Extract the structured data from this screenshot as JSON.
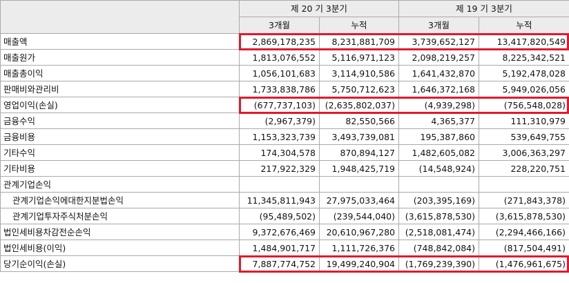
{
  "header": {
    "period1": "제 20 기 3분기",
    "period2": "제 19 기 3분기",
    "sub": [
      "3개월",
      "누적",
      "3개월",
      "누적"
    ]
  },
  "rows": [
    {
      "label": "매출액",
      "values": [
        "2,869,178,235",
        "8,231,881,709",
        "3,739,652,127",
        "13,417,820,549"
      ],
      "highlight": true
    },
    {
      "label": "매출원가",
      "values": [
        "1,813,076,552",
        "5,116,971,123",
        "2,098,219,257",
        "8,225,342,521"
      ]
    },
    {
      "label": "매출총이익",
      "values": [
        "1,056,101,683",
        "3,114,910,586",
        "1,641,432,870",
        "5,192,478,028"
      ]
    },
    {
      "label": "판매비와관리비",
      "values": [
        "1,733,838,786",
        "5,750,712,623",
        "1,646,372,168",
        "5,949,026,056"
      ]
    },
    {
      "label": "영업이익(손실)",
      "values": [
        "(677,737,103)",
        "(2,635,802,037)",
        "(4,939,298)",
        "(756,548,028)"
      ],
      "highlight": true
    },
    {
      "label": "금융수익",
      "values": [
        "(2,967,379)",
        "82,550,566",
        "4,365,377",
        "111,310,979"
      ]
    },
    {
      "label": "금융비용",
      "values": [
        "1,153,323,739",
        "3,493,739,081",
        "195,387,860",
        "539,649,755"
      ]
    },
    {
      "label": "기타수익",
      "values": [
        "174,304,578",
        "870,894,127",
        "1,482,605,082",
        "3,006,363,297"
      ]
    },
    {
      "label": "기타비용",
      "values": [
        "217,922,329",
        "1,948,425,719",
        "(14,548,924)",
        "228,220,751"
      ]
    },
    {
      "label": "관계기업손익",
      "values": [
        "",
        "",
        "",
        ""
      ]
    },
    {
      "label": "관계기업손익에대한지분법손익",
      "values": [
        "11,345,811,943",
        "27,975,033,464",
        "(203,395,169)",
        "(271,843,378)"
      ],
      "indent": true
    },
    {
      "label": "관계기업투자주식처분손익",
      "values": [
        "(95,489,502)",
        "(239,544,040)",
        "(3,615,878,530)",
        "(3,615,878,530)"
      ],
      "indent": true
    },
    {
      "label": "법인세비용차감전순손익",
      "values": [
        "9,372,676,469",
        "20,610,967,280",
        "(2,518,081,474)",
        "(2,294,466,166)"
      ]
    },
    {
      "label": "법인세비용(이익)",
      "values": [
        "1,484,901,717",
        "1,111,726,376",
        "(748,842,084)",
        "(817,504,491)"
      ]
    },
    {
      "label": "당기순이익(손실)",
      "values": [
        "7,887,774,752",
        "19,499,240,904",
        "(1,769,239,390)",
        "(1,476,961,675)"
      ],
      "highlight": true
    }
  ],
  "highlight_color": "#e3182d"
}
